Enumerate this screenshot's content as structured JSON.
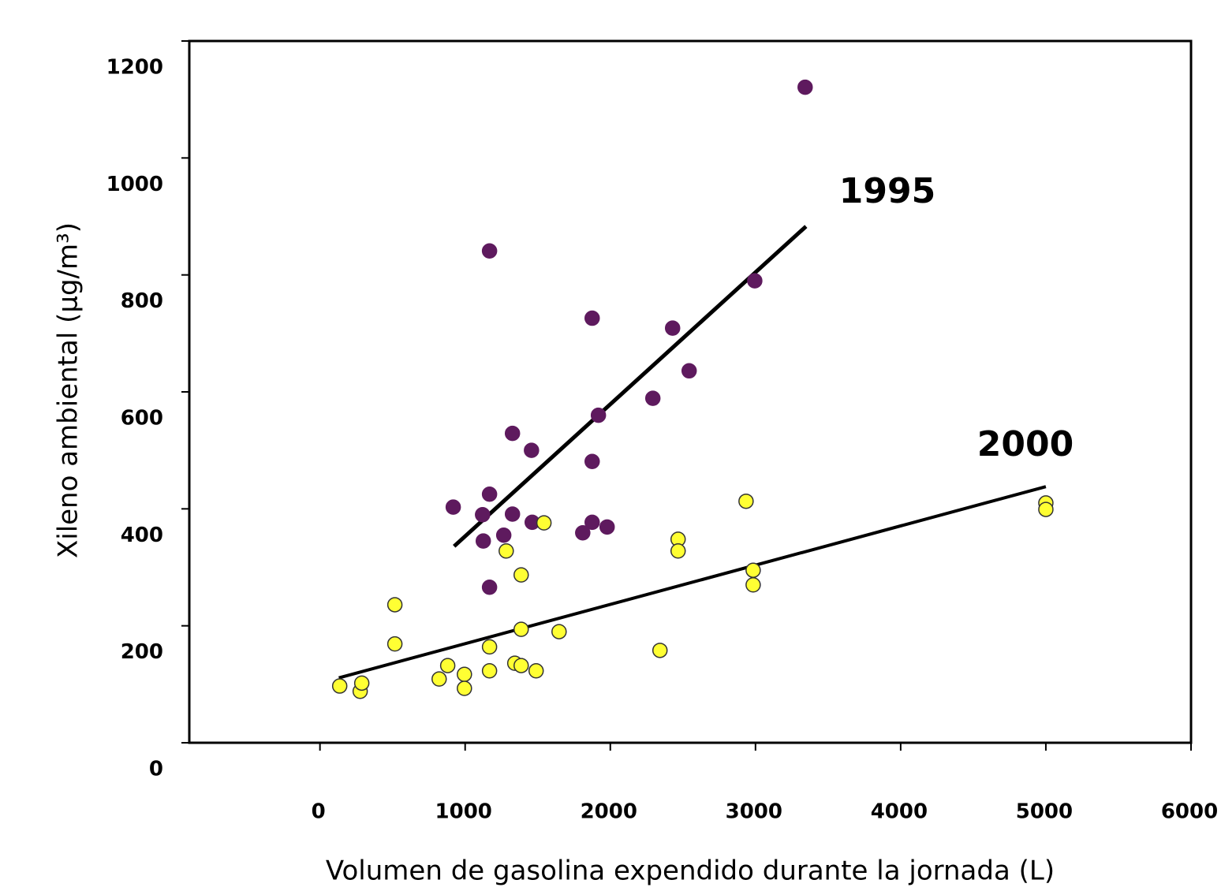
{
  "chart_data": {
    "type": "scatter",
    "xlabel": "Volumen de gasolina expendido durante la jornada (L)",
    "ylabel": "Xileno ambiental (µg/m³)",
    "xlim": [
      -900,
      6000
    ],
    "ylim": [
      0,
      1200
    ],
    "xticks": [
      0,
      1000,
      2000,
      3000,
      4000,
      5000,
      6000
    ],
    "yticks": [
      0,
      200,
      400,
      600,
      800,
      1000,
      1200
    ],
    "series": [
      {
        "name": "1995",
        "color": "#5e1a5e",
        "x": [
          3342,
          1168,
          1875,
          2995,
          2429,
          2543,
          2293,
          1918,
          1326,
          1457,
          1875,
          918,
          1168,
          1120,
          1326,
          1462,
          1875,
          1978,
          1810,
          1266,
          1125,
          1168
        ],
        "values": [
          1121,
          841,
          726,
          790,
          709,
          636,
          589,
          560,
          529,
          500,
          481,
          403,
          425,
          390,
          391,
          377,
          377,
          369,
          359,
          355,
          345,
          266
        ],
        "trend": {
          "x": [
            924,
            3348
          ],
          "y": [
            336,
            883
          ]
        }
      },
      {
        "name": "2000",
        "color": "#ffff33",
        "x": [
          136,
          277,
          288,
          516,
          516,
          821,
          880,
          995,
          995,
          1168,
          1168,
          1283,
          1386,
          1386,
          1342,
          1386,
          1489,
          1543,
          1647,
          2342,
          2467,
          2467,
          2935,
          2984,
          2984,
          5000,
          5000
        ],
        "values": [
          97,
          88,
          102,
          236,
          169,
          109,
          132,
          117,
          93,
          123,
          164,
          328,
          287,
          194,
          136,
          132,
          123,
          376,
          190,
          158,
          348,
          328,
          413,
          295,
          270,
          410,
          399
        ],
        "trend": {
          "x": [
            130,
            5000
          ],
          "y": [
            111,
            438
          ]
        }
      }
    ]
  }
}
